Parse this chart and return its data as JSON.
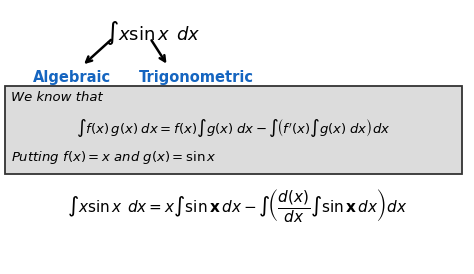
{
  "bg_color": "#ffffff",
  "box_bg_color": "#dcdcdc",
  "box_edge_color": "#333333",
  "label_algebraic": "Algebraic",
  "label_trigonometric": "Trigonometric",
  "label_color": "#1565c0",
  "figsize": [
    4.74,
    2.74
  ],
  "dpi": 100
}
